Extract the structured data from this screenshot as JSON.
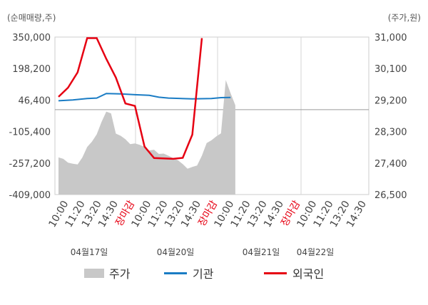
{
  "chart_data": {
    "type": "line",
    "left_axis": {
      "label": "(순매매량,주)",
      "ticks": [
        "350,000",
        "198,200",
        "46,400",
        "-105,400",
        "-257,200",
        "-409,000"
      ],
      "min": -409000,
      "max": 350000
    },
    "right_axis": {
      "label": "(주가,원)",
      "ticks": [
        "31,000",
        "30,100",
        "29,200",
        "28,300",
        "27,400",
        "26,500"
      ],
      "min": 26500,
      "max": 31000
    },
    "x_ticks": [
      "10:00",
      "11:20",
      "13:20",
      "14:30",
      "장마감",
      "10:00",
      "11:20",
      "13:20",
      "14:30",
      "장마감",
      "10:00",
      "11:20",
      "13:20",
      "14:30",
      "장마감",
      "10:00",
      "11:20",
      "13:20",
      "14:30"
    ],
    "dates": [
      "04월17일",
      "04월20일",
      "04월21일",
      "04월22일"
    ],
    "legend": [
      "주가",
      "기관",
      "외국인"
    ],
    "colors": {
      "price_area": "#c8c8c8",
      "institution": "#1a7cc4",
      "foreign": "#e60012",
      "closing_label": "#e60012"
    },
    "price_series": [
      [
        0,
        27560
      ],
      [
        1,
        27520
      ],
      [
        2,
        27410
      ],
      [
        3,
        27380
      ],
      [
        4,
        27360
      ],
      [
        5,
        27560
      ],
      [
        6,
        27860
      ],
      [
        7,
        28010
      ],
      [
        8,
        28220
      ],
      [
        9,
        28570
      ],
      [
        10,
        28870
      ],
      [
        11,
        28820
      ],
      [
        12,
        28240
      ],
      [
        13,
        28180
      ],
      [
        14,
        28080
      ],
      [
        15,
        27940
      ],
      [
        16,
        27960
      ],
      [
        17,
        27920
      ],
      [
        18,
        27860
      ],
      [
        19,
        27760
      ],
      [
        20,
        27780
      ],
      [
        21,
        27660
      ],
      [
        22,
        27670
      ],
      [
        23,
        27610
      ],
      [
        24,
        27540
      ],
      [
        25,
        27480
      ],
      [
        26,
        27370
      ],
      [
        27,
        27240
      ],
      [
        28,
        27290
      ],
      [
        29,
        27330
      ],
      [
        30,
        27610
      ],
      [
        31,
        27970
      ],
      [
        32,
        28050
      ],
      [
        33,
        28160
      ],
      [
        34,
        28250
      ],
      [
        35,
        29770
      ],
      [
        36,
        29400
      ],
      [
        37,
        29050
      ]
    ],
    "institution_series": [
      [
        0,
        43000
      ],
      [
        3,
        47000
      ],
      [
        6,
        54000
      ],
      [
        8,
        56000
      ],
      [
        10,
        78000
      ],
      [
        13,
        76000
      ],
      [
        16,
        72000
      ],
      [
        19,
        69000
      ],
      [
        21,
        60000
      ],
      [
        23,
        56000
      ],
      [
        28,
        52000
      ],
      [
        32,
        54000
      ],
      [
        34,
        58000
      ],
      [
        36,
        59000
      ]
    ],
    "foreign_series": [
      [
        0,
        62000
      ],
      [
        2,
        106000
      ],
      [
        4,
        180000
      ],
      [
        6,
        345000
      ],
      [
        8,
        345000
      ],
      [
        10,
        245000
      ],
      [
        12,
        155000
      ],
      [
        14,
        30000
      ],
      [
        16,
        18000
      ],
      [
        18,
        -178000
      ],
      [
        20,
        -233000
      ],
      [
        24,
        -237000
      ],
      [
        26,
        -232000
      ],
      [
        28,
        -120000
      ],
      [
        30,
        345000
      ]
    ]
  }
}
